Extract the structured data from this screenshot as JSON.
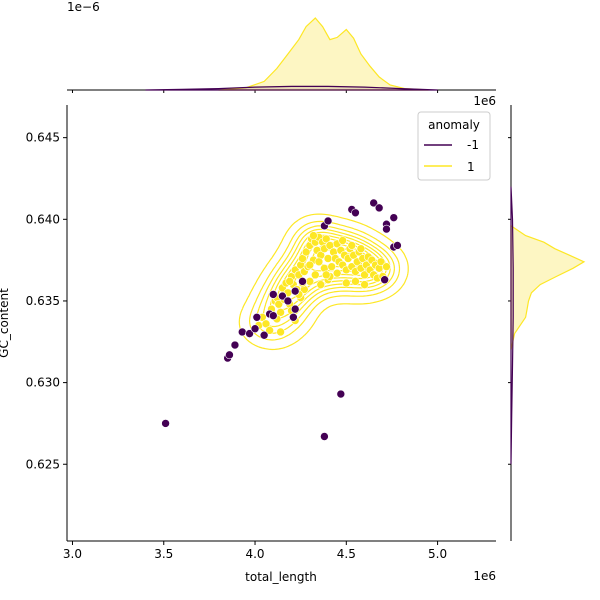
{
  "chart_data": {
    "type": "scatter",
    "subtype": "jointplot",
    "xlabel": "total_length",
    "ylabel": "GC_content",
    "xlim": [
      2.97,
      5.32
    ],
    "ylim": [
      0.6203,
      0.647
    ],
    "x_ticks": [
      3.0,
      3.5,
      4.0,
      4.5,
      5.0
    ],
    "x_tick_labels": [
      "3.0",
      "3.5",
      "4.0",
      "4.5",
      "5.0"
    ],
    "x_offset_label": "1e6",
    "y_ticks": [
      0.625,
      0.63,
      0.635,
      0.64,
      0.645
    ],
    "y_tick_labels": [
      "0.625",
      "0.630",
      "0.635",
      "0.640",
      "0.645"
    ],
    "top_marginal_offset_label": "1e−6",
    "right_marginal_offset_label": "1e6",
    "legend": {
      "title": "anomaly",
      "placement": "top-right",
      "entries": [
        {
          "label": "-1",
          "color": "#440154"
        },
        {
          "label": "1",
          "color": "#fde725"
        }
      ]
    },
    "colors": {
      "anomaly": "#440154",
      "normal": "#fde725",
      "normal_fill": "#fdf6c3",
      "point_edge": "#ffffff"
    },
    "series": [
      {
        "name": "-1",
        "points": [
          [
            3.51,
            0.6275
          ],
          [
            4.38,
            0.6267
          ],
          [
            4.47,
            0.6293
          ],
          [
            3.85,
            0.6315
          ],
          [
            3.86,
            0.6317
          ],
          [
            3.89,
            0.6323
          ],
          [
            3.93,
            0.6331
          ],
          [
            3.97,
            0.633
          ],
          [
            4.0,
            0.6333
          ],
          [
            4.01,
            0.634
          ],
          [
            4.05,
            0.6329
          ],
          [
            4.08,
            0.6342
          ],
          [
            4.1,
            0.6341
          ],
          [
            4.15,
            0.6353
          ],
          [
            4.18,
            0.635
          ],
          [
            4.22,
            0.6356
          ],
          [
            4.21,
            0.634
          ],
          [
            4.26,
            0.6362
          ],
          [
            4.22,
            0.6345
          ],
          [
            4.38,
            0.6396
          ],
          [
            4.4,
            0.6399
          ],
          [
            4.53,
            0.6406
          ],
          [
            4.55,
            0.6404
          ],
          [
            4.65,
            0.641
          ],
          [
            4.68,
            0.6407
          ],
          [
            4.72,
            0.6397
          ],
          [
            4.72,
            0.6394
          ],
          [
            4.76,
            0.6401
          ],
          [
            4.76,
            0.6383
          ],
          [
            4.78,
            0.6384
          ],
          [
            4.71,
            0.6363
          ],
          [
            4.1,
            0.6354
          ]
        ]
      },
      {
        "name": "1",
        "points": [
          [
            4.02,
            0.6335
          ],
          [
            4.04,
            0.634
          ],
          [
            4.06,
            0.6336
          ],
          [
            4.09,
            0.6345
          ],
          [
            4.11,
            0.635
          ],
          [
            4.12,
            0.6352
          ],
          [
            4.13,
            0.6348
          ],
          [
            4.14,
            0.6343
          ],
          [
            4.15,
            0.6358
          ],
          [
            4.16,
            0.6351
          ],
          [
            4.17,
            0.6361
          ],
          [
            4.18,
            0.6355
          ],
          [
            4.19,
            0.6348
          ],
          [
            4.2,
            0.6365
          ],
          [
            4.21,
            0.636
          ],
          [
            4.22,
            0.6369
          ],
          [
            4.23,
            0.6357
          ],
          [
            4.24,
            0.6366
          ],
          [
            4.25,
            0.6372
          ],
          [
            4.25,
            0.6352
          ],
          [
            4.26,
            0.6376
          ],
          [
            4.27,
            0.6368
          ],
          [
            4.28,
            0.638
          ],
          [
            4.29,
            0.6371
          ],
          [
            4.3,
            0.6384
          ],
          [
            4.3,
            0.6362
          ],
          [
            4.31,
            0.6388
          ],
          [
            4.32,
            0.6375
          ],
          [
            4.33,
            0.6386
          ],
          [
            4.34,
            0.6381
          ],
          [
            4.35,
            0.6389
          ],
          [
            4.36,
            0.6378
          ],
          [
            4.37,
            0.6386
          ],
          [
            4.38,
            0.637
          ],
          [
            4.38,
            0.6382
          ],
          [
            4.39,
            0.6388
          ],
          [
            4.4,
            0.6376
          ],
          [
            4.41,
            0.6384
          ],
          [
            4.42,
            0.6371
          ],
          [
            4.43,
            0.638
          ],
          [
            4.44,
            0.6376
          ],
          [
            4.45,
            0.6385
          ],
          [
            4.46,
            0.6374
          ],
          [
            4.47,
            0.6381
          ],
          [
            4.48,
            0.6372
          ],
          [
            4.49,
            0.6378
          ],
          [
            4.5,
            0.6369
          ],
          [
            4.51,
            0.6376
          ],
          [
            4.52,
            0.6382
          ],
          [
            4.53,
            0.6371
          ],
          [
            4.54,
            0.6378
          ],
          [
            4.55,
            0.6368
          ],
          [
            4.56,
            0.6374
          ],
          [
            4.57,
            0.638
          ],
          [
            4.58,
            0.637
          ],
          [
            4.59,
            0.6376
          ],
          [
            4.6,
            0.6366
          ],
          [
            4.61,
            0.6372
          ],
          [
            4.62,
            0.6377
          ],
          [
            4.63,
            0.6369
          ],
          [
            4.64,
            0.6375
          ],
          [
            4.65,
            0.6366
          ],
          [
            4.66,
            0.6372
          ],
          [
            4.67,
            0.6364
          ],
          [
            4.68,
            0.637
          ],
          [
            4.69,
            0.6374
          ],
          [
            4.7,
            0.6365
          ],
          [
            4.72,
            0.6371
          ],
          [
            4.33,
            0.6366
          ],
          [
            4.36,
            0.636
          ],
          [
            4.4,
            0.6363
          ],
          [
            4.45,
            0.6367
          ],
          [
            4.5,
            0.6361
          ],
          [
            4.55,
            0.6362
          ],
          [
            4.6,
            0.636
          ],
          [
            4.27,
            0.6357
          ],
          [
            4.2,
            0.6344
          ],
          [
            4.14,
            0.6331
          ],
          [
            4.22,
            0.6338
          ],
          [
            4.08,
            0.6332
          ],
          [
            4.32,
            0.639
          ],
          [
            4.41,
            0.6365
          ],
          [
            4.48,
            0.6387
          ],
          [
            4.53,
            0.6384
          ],
          [
            4.58,
            0.6382
          ],
          [
            4.35,
            0.6374
          ],
          [
            4.39,
            0.6366
          ],
          [
            4.26,
            0.6361
          ],
          [
            4.19,
            0.6362
          ],
          [
            4.12,
            0.6339
          ],
          [
            4.24,
            0.6354
          ],
          [
            4.3,
            0.6372
          ]
        ]
      }
    ],
    "marginal_top": {
      "axis": "total_length",
      "series": [
        {
          "name": "1",
          "x": [
            3.8,
            3.95,
            4.05,
            4.12,
            4.18,
            4.24,
            4.28,
            4.33,
            4.37,
            4.41,
            4.45,
            4.5,
            4.54,
            4.58,
            4.63,
            4.68,
            4.74,
            4.82,
            4.95
          ],
          "density": [
            0.0,
            0.03,
            0.12,
            0.3,
            0.5,
            0.7,
            0.88,
            1.0,
            0.88,
            0.7,
            0.73,
            0.84,
            0.72,
            0.5,
            0.33,
            0.18,
            0.07,
            0.02,
            0.0
          ]
        },
        {
          "name": "-1",
          "x": [
            3.4,
            3.6,
            3.8,
            4.0,
            4.2,
            4.4,
            4.6,
            4.8,
            5.0
          ],
          "density": [
            0.0,
            0.01,
            0.02,
            0.04,
            0.05,
            0.05,
            0.04,
            0.02,
            0.0
          ]
        }
      ]
    },
    "marginal_right": {
      "axis": "GC_content",
      "series": [
        {
          "name": "1",
          "y": [
            0.632,
            0.633,
            0.634,
            0.6345,
            0.635,
            0.6355,
            0.636,
            0.6365,
            0.637,
            0.6374,
            0.6378,
            0.6382,
            0.6386,
            0.639,
            0.6396
          ],
          "density": [
            0.0,
            0.05,
            0.2,
            0.22,
            0.24,
            0.28,
            0.4,
            0.62,
            0.85,
            1.0,
            0.8,
            0.6,
            0.45,
            0.2,
            0.0
          ]
        },
        {
          "name": "-1",
          "y": [
            0.625,
            0.628,
            0.631,
            0.634,
            0.637,
            0.64,
            0.642
          ],
          "density": [
            0.0,
            0.01,
            0.02,
            0.03,
            0.03,
            0.02,
            0.0
          ]
        }
      ]
    }
  }
}
